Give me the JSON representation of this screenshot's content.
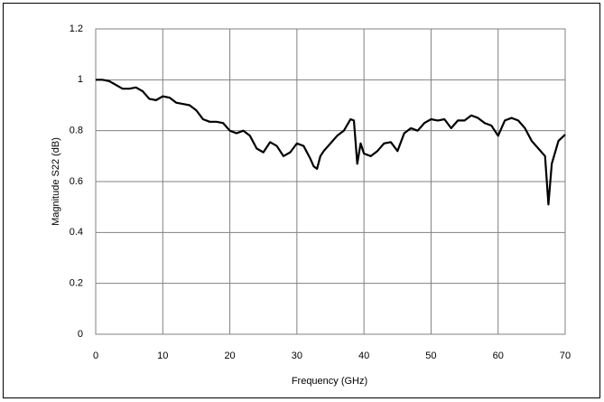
{
  "chart_data": {
    "type": "line",
    "x_label": "Frequency (GHz)",
    "y_label": "Magnitude S22 (dB)",
    "xlim": [
      0,
      70
    ],
    "xticks": [
      0,
      10,
      20,
      30,
      40,
      50,
      60,
      70
    ],
    "ylim": [
      0,
      1.2
    ],
    "yticks": [
      0,
      {
        "value": 0.2,
        "label": "0.2"
      },
      {
        "value": 0.4,
        "label": "0.4"
      },
      {
        "value": 0.6,
        "label": "0.6"
      },
      {
        "value": 0.8,
        "label": "0.8"
      },
      1,
      {
        "value": 1.2,
        "label": "1.2"
      }
    ],
    "grid": true,
    "x": [
      0,
      1,
      2,
      3,
      4,
      5,
      6,
      7,
      8,
      9,
      10,
      11,
      12,
      13,
      14,
      15,
      16,
      17,
      18,
      19,
      20,
      21,
      22,
      23,
      24,
      25,
      26,
      27,
      28,
      29,
      30,
      31,
      32,
      32.5,
      33,
      33.5,
      34,
      35,
      36,
      37,
      38,
      38.5,
      39,
      39.5,
      40,
      41,
      42,
      43,
      44,
      45,
      46,
      47,
      48,
      49,
      50,
      51,
      52,
      53,
      54,
      55,
      56,
      57,
      58,
      59,
      60,
      61,
      62,
      63,
      64,
      65,
      66,
      67,
      67.5,
      68,
      69,
      70
    ],
    "series": [
      {
        "color": "#000000",
        "values": [
          1.0,
          1.0,
          0.995,
          0.98,
          0.965,
          0.965,
          0.97,
          0.955,
          0.925,
          0.92,
          0.935,
          0.93,
          0.91,
          0.905,
          0.9,
          0.88,
          0.845,
          0.835,
          0.835,
          0.83,
          0.8,
          0.79,
          0.8,
          0.78,
          0.73,
          0.715,
          0.755,
          0.74,
          0.7,
          0.715,
          0.75,
          0.74,
          0.69,
          0.66,
          0.65,
          0.7,
          0.72,
          0.75,
          0.78,
          0.8,
          0.845,
          0.84,
          0.67,
          0.75,
          0.71,
          0.7,
          0.72,
          0.75,
          0.755,
          0.72,
          0.79,
          0.81,
          0.8,
          0.83,
          0.845,
          0.84,
          0.845,
          0.81,
          0.84,
          0.84,
          0.86,
          0.85,
          0.83,
          0.82,
          0.78,
          0.84,
          0.85,
          0.84,
          0.81,
          0.76,
          0.73,
          0.7,
          0.51,
          0.67,
          0.76,
          0.785
        ]
      }
    ]
  }
}
